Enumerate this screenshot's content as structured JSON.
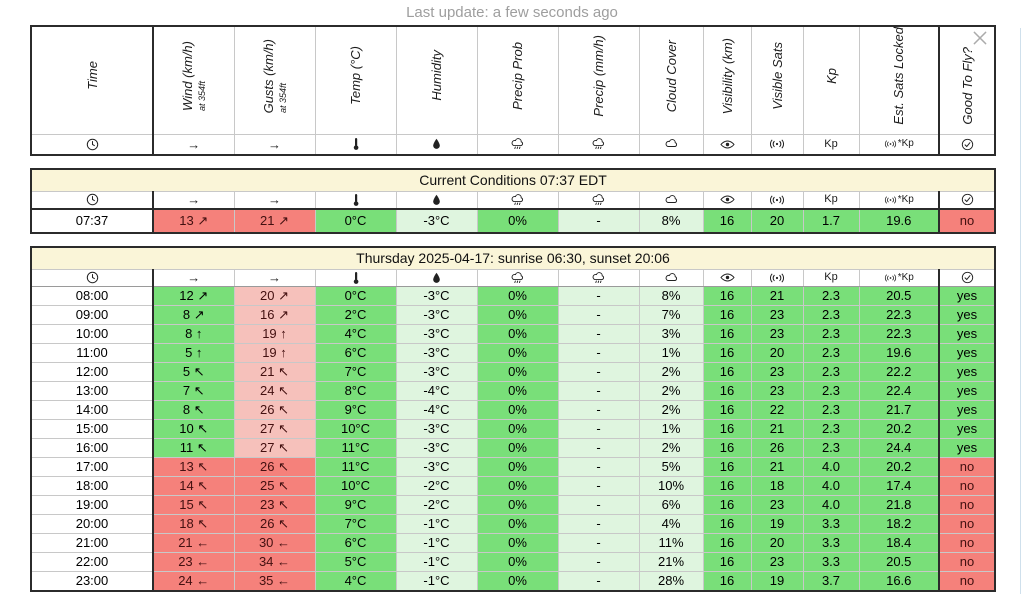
{
  "header": {
    "last_update": "Last update: a few seconds ago"
  },
  "columns": [
    {
      "key": "time",
      "label": "Time",
      "icon": "clock-icon"
    },
    {
      "key": "wind",
      "label": "Wind (km/h)",
      "sub": "at 354ft",
      "icon": "wind-arrow-icon"
    },
    {
      "key": "gusts",
      "label": "Gusts (km/h)",
      "sub": "at 354ft",
      "icon": "gust-arrow-icon"
    },
    {
      "key": "temp",
      "label": "Temp (°C)",
      "icon": "thermometer-icon"
    },
    {
      "key": "humidity",
      "label": "Humidity",
      "icon": "droplet-icon"
    },
    {
      "key": "precip-prob",
      "label": "Precip Prob",
      "icon": "rain-cloud-icon"
    },
    {
      "key": "precip",
      "label": "Precip (mm/h)",
      "icon": "rain-cloud-icon"
    },
    {
      "key": "cloud-cover",
      "label": "Cloud Cover",
      "icon": "cloud-icon"
    },
    {
      "key": "visibility",
      "label": "Visibility (km)",
      "icon": "eye-icon"
    },
    {
      "key": "visible-sats",
      "label": "Visible Sats",
      "icon": "satellite-icon"
    },
    {
      "key": "kp",
      "label": "Kp",
      "icon": "kp-text-icon"
    },
    {
      "key": "est-sats-locked",
      "label": "Est. Sats Locked",
      "icon": "sats-kp-icon"
    },
    {
      "key": "good-to-fly",
      "label": "Good To Fly?",
      "icon": "check-circle-icon"
    }
  ],
  "current": {
    "title": "Current Conditions 07:37 EDT",
    "row": {
      "values": [
        "07:37",
        "13 ↗",
        "21 ↗",
        "0°C",
        "-3°C",
        "0%",
        "-",
        "8%",
        "16",
        "20",
        "1.7",
        "19.6",
        "no"
      ],
      "colors": [
        "w",
        "r",
        "r",
        "g",
        "lg",
        "g",
        "lg",
        "lg",
        "g",
        "g",
        "g",
        "g",
        "r"
      ]
    }
  },
  "forecast": {
    "title": "Thursday 2025-04-17: sunrise 06:30, sunset 20:06",
    "rows": [
      {
        "values": [
          "08:00",
          "12 ↗",
          "20 ↗",
          "0°C",
          "-3°C",
          "0%",
          "-",
          "8%",
          "16",
          "21",
          "2.3",
          "20.5",
          "yes"
        ],
        "colors": [
          "w",
          "g",
          "p",
          "g",
          "lg",
          "g",
          "lg",
          "lg",
          "g",
          "g",
          "g",
          "g",
          "g"
        ]
      },
      {
        "values": [
          "09:00",
          "8 ↗",
          "16 ↗",
          "2°C",
          "-3°C",
          "0%",
          "-",
          "7%",
          "16",
          "23",
          "2.3",
          "22.3",
          "yes"
        ],
        "colors": [
          "w",
          "g",
          "p",
          "g",
          "lg",
          "g",
          "lg",
          "lg",
          "g",
          "g",
          "g",
          "g",
          "g"
        ]
      },
      {
        "values": [
          "10:00",
          "8 ↑",
          "19 ↑",
          "4°C",
          "-3°C",
          "0%",
          "-",
          "3%",
          "16",
          "23",
          "2.3",
          "22.3",
          "yes"
        ],
        "colors": [
          "w",
          "g",
          "p",
          "g",
          "lg",
          "g",
          "lg",
          "lg",
          "g",
          "g",
          "g",
          "g",
          "g"
        ]
      },
      {
        "values": [
          "11:00",
          "5 ↑",
          "19 ↑",
          "6°C",
          "-3°C",
          "0%",
          "-",
          "1%",
          "16",
          "20",
          "2.3",
          "19.6",
          "yes"
        ],
        "colors": [
          "w",
          "g",
          "p",
          "g",
          "lg",
          "g",
          "lg",
          "lg",
          "g",
          "g",
          "g",
          "g",
          "g"
        ]
      },
      {
        "values": [
          "12:00",
          "5 ↖",
          "21 ↖",
          "7°C",
          "-3°C",
          "0%",
          "-",
          "2%",
          "16",
          "23",
          "2.3",
          "22.2",
          "yes"
        ],
        "colors": [
          "w",
          "g",
          "p",
          "g",
          "lg",
          "g",
          "lg",
          "lg",
          "g",
          "g",
          "g",
          "g",
          "g"
        ]
      },
      {
        "values": [
          "13:00",
          "7 ↖",
          "24 ↖",
          "8°C",
          "-4°C",
          "0%",
          "-",
          "2%",
          "16",
          "23",
          "2.3",
          "22.4",
          "yes"
        ],
        "colors": [
          "w",
          "g",
          "p",
          "g",
          "lg",
          "g",
          "lg",
          "lg",
          "g",
          "g",
          "g",
          "g",
          "g"
        ]
      },
      {
        "values": [
          "14:00",
          "8 ↖",
          "26 ↖",
          "9°C",
          "-4°C",
          "0%",
          "-",
          "2%",
          "16",
          "22",
          "2.3",
          "21.7",
          "yes"
        ],
        "colors": [
          "w",
          "g",
          "p",
          "g",
          "lg",
          "g",
          "lg",
          "lg",
          "g",
          "g",
          "g",
          "g",
          "g"
        ]
      },
      {
        "values": [
          "15:00",
          "10 ↖",
          "27 ↖",
          "10°C",
          "-3°C",
          "0%",
          "-",
          "1%",
          "16",
          "21",
          "2.3",
          "20.2",
          "yes"
        ],
        "colors": [
          "w",
          "g",
          "p",
          "g",
          "lg",
          "g",
          "lg",
          "lg",
          "g",
          "g",
          "g",
          "g",
          "g"
        ]
      },
      {
        "values": [
          "16:00",
          "11 ↖",
          "27 ↖",
          "11°C",
          "-3°C",
          "0%",
          "-",
          "2%",
          "16",
          "26",
          "2.3",
          "24.4",
          "yes"
        ],
        "colors": [
          "w",
          "g",
          "p",
          "g",
          "lg",
          "g",
          "lg",
          "lg",
          "g",
          "g",
          "g",
          "g",
          "g"
        ]
      },
      {
        "values": [
          "17:00",
          "13 ↖",
          "26 ↖",
          "11°C",
          "-3°C",
          "0%",
          "-",
          "5%",
          "16",
          "21",
          "4.0",
          "20.2",
          "no"
        ],
        "colors": [
          "w",
          "r",
          "r",
          "g",
          "lg",
          "g",
          "lg",
          "lg",
          "g",
          "g",
          "g",
          "g",
          "r"
        ]
      },
      {
        "values": [
          "18:00",
          "14 ↖",
          "25 ↖",
          "10°C",
          "-2°C",
          "0%",
          "-",
          "10%",
          "16",
          "18",
          "4.0",
          "17.4",
          "no"
        ],
        "colors": [
          "w",
          "r",
          "r",
          "g",
          "lg",
          "g",
          "lg",
          "lg",
          "g",
          "g",
          "g",
          "g",
          "r"
        ]
      },
      {
        "values": [
          "19:00",
          "15 ↖",
          "23 ↖",
          "9°C",
          "-2°C",
          "0%",
          "-",
          "6%",
          "16",
          "23",
          "4.0",
          "21.8",
          "no"
        ],
        "colors": [
          "w",
          "r",
          "r",
          "g",
          "lg",
          "g",
          "lg",
          "lg",
          "g",
          "g",
          "g",
          "g",
          "r"
        ]
      },
      {
        "values": [
          "20:00",
          "18 ↖",
          "26 ↖",
          "7°C",
          "-1°C",
          "0%",
          "-",
          "4%",
          "16",
          "19",
          "3.3",
          "18.2",
          "no"
        ],
        "colors": [
          "w",
          "r",
          "r",
          "g",
          "lg",
          "g",
          "lg",
          "lg",
          "g",
          "g",
          "g",
          "g",
          "r"
        ]
      },
      {
        "values": [
          "21:00",
          "21 ←",
          "30 ←",
          "6°C",
          "-1°C",
          "0%",
          "-",
          "11%",
          "16",
          "20",
          "3.3",
          "18.4",
          "no"
        ],
        "colors": [
          "w",
          "r",
          "r",
          "g",
          "lg",
          "g",
          "lg",
          "lg",
          "g",
          "g",
          "g",
          "g",
          "r"
        ]
      },
      {
        "values": [
          "22:00",
          "23 ←",
          "34 ←",
          "5°C",
          "-1°C",
          "0%",
          "-",
          "21%",
          "16",
          "23",
          "3.3",
          "20.5",
          "no"
        ],
        "colors": [
          "w",
          "r",
          "r",
          "g",
          "lg",
          "g",
          "lg",
          "lg",
          "g",
          "g",
          "g",
          "g",
          "r"
        ]
      },
      {
        "values": [
          "23:00",
          "24 ←",
          "35 ←",
          "4°C",
          "-1°C",
          "0%",
          "-",
          "28%",
          "16",
          "19",
          "3.7",
          "16.6",
          "no"
        ],
        "colors": [
          "w",
          "r",
          "r",
          "g",
          "lg",
          "g",
          "lg",
          "lg",
          "g",
          "g",
          "g",
          "g",
          "r"
        ]
      }
    ]
  },
  "colors": {
    "green": "#79DF79",
    "light_green": "#DFF5DF",
    "pink": "#F6C1BB",
    "red": "#F5817B",
    "white": "#FFFFFF",
    "header_band": "#FAF5D8",
    "table_border": "#2B2B2B",
    "grid_line": "#C8C8C8",
    "muted_text": "#9E9E9E"
  }
}
